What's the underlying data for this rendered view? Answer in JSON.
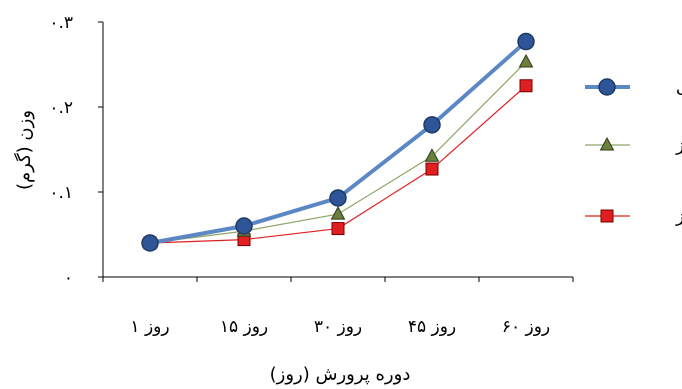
{
  "chart_data": {
    "type": "line",
    "xlabel": "دوره پرورش (روز)",
    "ylabel": "وزن (گرم)",
    "categories": [
      "روز ۱",
      "روز ۱۵",
      "روز ۳۰",
      "روز ۴۵",
      "روز ۶۰"
    ],
    "ylim": [
      0,
      0.3
    ],
    "yticks": [
      0,
      0.1,
      0.2,
      0.3
    ],
    "ytick_labels": [
      "۰",
      "۰.۱",
      "۰.۲",
      "۰.۳"
    ],
    "grid": false,
    "legend_position": "right",
    "series": [
      {
        "name": "آبی",
        "color": "#4f81bd",
        "marker": "circle",
        "values": [
          0.04,
          0.06,
          0.093,
          0.179,
          0.277
        ]
      },
      {
        "name": "سبز",
        "color": "#6b7f3a",
        "marker": "triangle",
        "values": [
          0.04,
          0.054,
          0.074,
          0.142,
          0.253
        ]
      },
      {
        "name": "قرمز",
        "color": "#e02020",
        "marker": "square",
        "values": [
          0.04,
          0.044,
          0.057,
          0.127,
          0.225
        ]
      }
    ]
  }
}
